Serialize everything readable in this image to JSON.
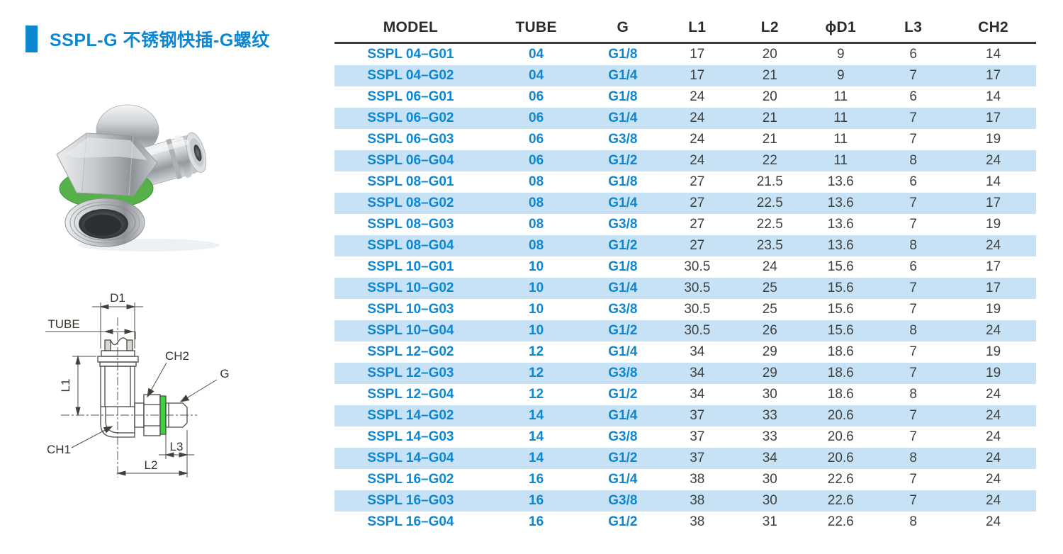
{
  "theme": {
    "accent": "#0e87d3",
    "row_alt_bg": "#c6e2f4",
    "header_text": "#2c2c2c",
    "value_text": "#404040",
    "rule": "#3a3a3a",
    "oring_green": "#3ed43e"
  },
  "header": {
    "title": "SSPL-G 不锈钢快插-G螺纹"
  },
  "diagram": {
    "labels": {
      "d1": "D1",
      "tube": "TUBE",
      "l1": "L1",
      "ch2": "CH2",
      "g": "G",
      "ch1": "CH1",
      "l3": "L3",
      "l2": "L2"
    }
  },
  "table": {
    "columns": [
      "MODEL",
      "TUBE",
      "G",
      "L1",
      "L2",
      "ϕD1",
      "L3",
      "CH2"
    ],
    "rows": [
      [
        "SSPL 04–G01",
        "04",
        "G1/8",
        "17",
        "20",
        "9",
        "6",
        "14"
      ],
      [
        "SSPL 04–G02",
        "04",
        "G1/4",
        "17",
        "21",
        "9",
        "7",
        "17"
      ],
      [
        "SSPL 06–G01",
        "06",
        "G1/8",
        "24",
        "20",
        "11",
        "6",
        "14"
      ],
      [
        "SSPL 06–G02",
        "06",
        "G1/4",
        "24",
        "21",
        "11",
        "7",
        "17"
      ],
      [
        "SSPL 06–G03",
        "06",
        "G3/8",
        "24",
        "21",
        "11",
        "7",
        "19"
      ],
      [
        "SSPL 06–G04",
        "06",
        "G1/2",
        "24",
        "22",
        "11",
        "8",
        "24"
      ],
      [
        "SSPL 08–G01",
        "08",
        "G1/8",
        "27",
        "21.5",
        "13.6",
        "6",
        "14"
      ],
      [
        "SSPL 08–G02",
        "08",
        "G1/4",
        "27",
        "22.5",
        "13.6",
        "7",
        "17"
      ],
      [
        "SSPL 08–G03",
        "08",
        "G3/8",
        "27",
        "22.5",
        "13.6",
        "7",
        "19"
      ],
      [
        "SSPL 08–G04",
        "08",
        "G1/2",
        "27",
        "23.5",
        "13.6",
        "8",
        "24"
      ],
      [
        "SSPL 10–G01",
        "10",
        "G1/8",
        "30.5",
        "24",
        "15.6",
        "6",
        "17"
      ],
      [
        "SSPL 10–G02",
        "10",
        "G1/4",
        "30.5",
        "25",
        "15.6",
        "7",
        "17"
      ],
      [
        "SSPL 10–G03",
        "10",
        "G3/8",
        "30.5",
        "25",
        "15.6",
        "7",
        "19"
      ],
      [
        "SSPL 10–G04",
        "10",
        "G1/2",
        "30.5",
        "26",
        "15.6",
        "8",
        "24"
      ],
      [
        "SSPL 12–G02",
        "12",
        "G1/4",
        "34",
        "29",
        "18.6",
        "7",
        "19"
      ],
      [
        "SSPL 12–G03",
        "12",
        "G3/8",
        "34",
        "29",
        "18.6",
        "7",
        "19"
      ],
      [
        "SSPL 12–G04",
        "12",
        "G1/2",
        "34",
        "30",
        "18.6",
        "8",
        "24"
      ],
      [
        "SSPL 14–G02",
        "14",
        "G1/4",
        "37",
        "33",
        "20.6",
        "7",
        "24"
      ],
      [
        "SSPL 14–G03",
        "14",
        "G3/8",
        "37",
        "33",
        "20.6",
        "7",
        "24"
      ],
      [
        "SSPL 14–G04",
        "14",
        "G1/2",
        "37",
        "34",
        "20.6",
        "8",
        "24"
      ],
      [
        "SSPL 16–G02",
        "16",
        "G1/4",
        "38",
        "30",
        "22.6",
        "7",
        "24"
      ],
      [
        "SSPL 16–G03",
        "16",
        "G3/8",
        "38",
        "30",
        "22.6",
        "7",
        "24"
      ],
      [
        "SSPL 16–G04",
        "16",
        "G1/2",
        "38",
        "31",
        "22.6",
        "8",
        "24"
      ]
    ]
  }
}
